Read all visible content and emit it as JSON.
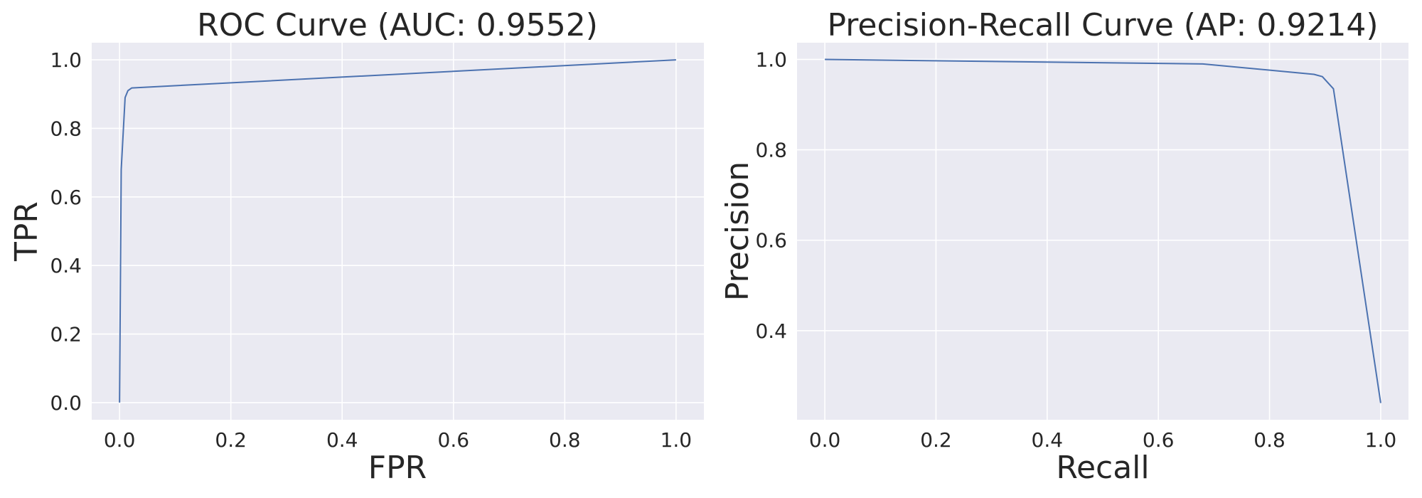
{
  "chart_data": [
    {
      "type": "line",
      "title": "ROC Curve (AUC: 0.9552)",
      "xlabel": "FPR",
      "ylabel": "TPR",
      "xlim": [
        -0.05,
        1.05
      ],
      "ylim": [
        -0.05,
        1.05
      ],
      "xticks": [
        0.0,
        0.2,
        0.4,
        0.6,
        0.8,
        1.0
      ],
      "xtick_labels": [
        "0.0",
        "0.2",
        "0.4",
        "0.6",
        "0.8",
        "1.0"
      ],
      "yticks": [
        0.0,
        0.2,
        0.4,
        0.6,
        0.8,
        1.0
      ],
      "ytick_labels": [
        "0.0",
        "0.2",
        "0.4",
        "0.6",
        "0.8",
        "1.0"
      ],
      "grid": true,
      "series": [
        {
          "color": "#4c72b0",
          "x": [
            0.0,
            0.003,
            0.01,
            0.015,
            0.022,
            1.0
          ],
          "y": [
            0.0,
            0.68,
            0.89,
            0.91,
            0.918,
            1.0
          ]
        }
      ]
    },
    {
      "type": "line",
      "title": "Precision-Recall Curve (AP: 0.9214)",
      "xlabel": "Recall",
      "ylabel": "Precision",
      "xlim": [
        -0.05,
        1.05
      ],
      "ylim": [
        0.203,
        1.037
      ],
      "xticks": [
        0.0,
        0.2,
        0.4,
        0.6,
        0.8,
        1.0
      ],
      "xtick_labels": [
        "0.0",
        "0.2",
        "0.4",
        "0.6",
        "0.8",
        "1.0"
      ],
      "yticks": [
        0.4,
        0.6,
        0.8,
        1.0
      ],
      "ytick_labels": [
        "0.4",
        "0.6",
        "0.8",
        "1.0"
      ],
      "grid": true,
      "series": [
        {
          "color": "#4c72b0",
          "x": [
            0.0,
            0.68,
            0.88,
            0.895,
            0.915,
            1.0
          ],
          "y": [
            1.0,
            0.99,
            0.967,
            0.962,
            0.935,
            0.24
          ]
        }
      ]
    }
  ]
}
